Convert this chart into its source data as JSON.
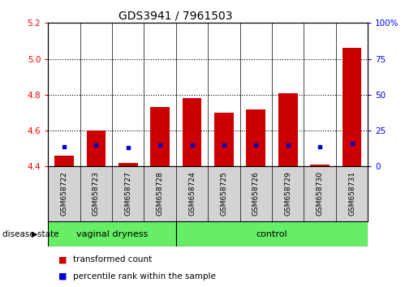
{
  "title": "GDS3941 / 7961503",
  "samples": [
    "GSM658722",
    "GSM658723",
    "GSM658727",
    "GSM658728",
    "GSM658724",
    "GSM658725",
    "GSM658726",
    "GSM658729",
    "GSM658730",
    "GSM658731"
  ],
  "red_values": [
    4.46,
    4.6,
    4.42,
    4.73,
    4.78,
    4.7,
    4.72,
    4.81,
    4.41,
    5.06
  ],
  "blue_percentiles": [
    14,
    15,
    13,
    15,
    15,
    15,
    15,
    15,
    14,
    16
  ],
  "y_min": 4.4,
  "y_max": 5.2,
  "y_ticks": [
    4.4,
    4.6,
    4.8,
    5.0,
    5.2
  ],
  "y_right_ticks": [
    0,
    25,
    50,
    75,
    100
  ],
  "red_color": "#cc0000",
  "blue_color": "#0000cc",
  "green_color": "#66ee66",
  "bar_bg_color": "#ffffff",
  "legend_red": "transformed count",
  "legend_blue": "percentile rank within the sample",
  "group_label": "disease state",
  "vaginal_label": "vaginal dryness",
  "control_label": "control",
  "n_vaginal": 4,
  "n_control": 6
}
